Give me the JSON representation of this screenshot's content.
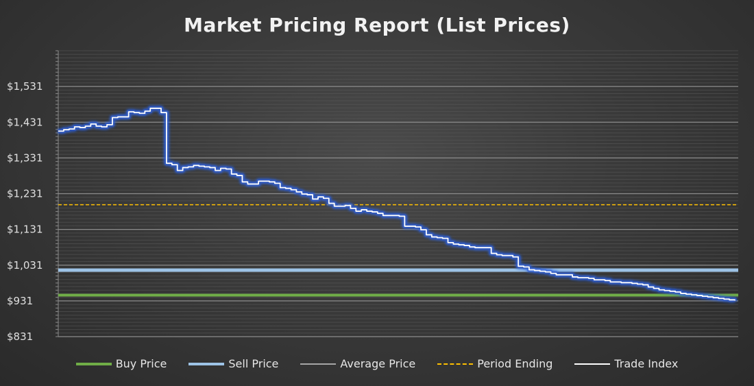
{
  "chart_data": {
    "type": "line",
    "title": "Market Pricing Report (List Prices)",
    "xlabel": "",
    "ylabel": "",
    "ylim": [
      831,
      1631
    ],
    "y_ticks": [
      "$831",
      "$931",
      "$1,031",
      "$1,131",
      "$1,231",
      "$1,331",
      "$1,431",
      "$1,531"
    ],
    "y_tick_values": [
      831,
      931,
      1031,
      1131,
      1231,
      1331,
      1431,
      1531
    ],
    "grid": true,
    "legend_position": "bottom",
    "colors": {
      "buy": "#70ad47",
      "sell": "#9dc3e6",
      "average": "#a6a6a6",
      "period": "#ffc000",
      "trade": "#ffffff",
      "trade_glow": "#2f5fd8"
    },
    "series": [
      {
        "name": "Buy Price",
        "style": "solid-thick",
        "constant": 947
      },
      {
        "name": "Sell Price",
        "style": "solid-thick",
        "constant": 1017
      },
      {
        "name": "Average Price",
        "style": "solid-thin",
        "constant": null
      },
      {
        "name": "Period Ending",
        "style": "dashed",
        "constant": 1200
      },
      {
        "name": "Trade Index",
        "style": "glow",
        "x": [
          0,
          2,
          4,
          6,
          8,
          10,
          12,
          14,
          16,
          18,
          20,
          22,
          24,
          26,
          28,
          30,
          32,
          34,
          36,
          38,
          40,
          42,
          44,
          46,
          48,
          50,
          52,
          54,
          56,
          58,
          60,
          62,
          64,
          66,
          68,
          70,
          72,
          74,
          76,
          78,
          80,
          82,
          84,
          86,
          88,
          90,
          92,
          94,
          96,
          98,
          100,
          102,
          104,
          106,
          108,
          110,
          112,
          114,
          116,
          118,
          120,
          122,
          124,
          126,
          128,
          130,
          132,
          134,
          136,
          138,
          140,
          142,
          144,
          146,
          148,
          150,
          152,
          154,
          156,
          158,
          160,
          162,
          164,
          166,
          168,
          170,
          172,
          174,
          176,
          178,
          180,
          182,
          184,
          186,
          188,
          190,
          192,
          194,
          196,
          198,
          200,
          202,
          204,
          206,
          208,
          210,
          212,
          214,
          216,
          218,
          220,
          222,
          224,
          226,
          228,
          230,
          232,
          234,
          236,
          238,
          240,
          242,
          244,
          246,
          248,
          250
        ],
        "values": [
          1406,
          1410,
          1412,
          1418,
          1416,
          1420,
          1426,
          1420,
          1418,
          1424,
          1444,
          1446,
          1446,
          1460,
          1458,
          1456,
          1462,
          1470,
          1470,
          1458,
          1316,
          1312,
          1296,
          1304,
          1306,
          1310,
          1308,
          1306,
          1304,
          1296,
          1302,
          1300,
          1286,
          1282,
          1264,
          1258,
          1258,
          1266,
          1266,
          1264,
          1260,
          1248,
          1246,
          1242,
          1236,
          1230,
          1228,
          1216,
          1222,
          1218,
          1204,
          1196,
          1196,
          1198,
          1190,
          1182,
          1186,
          1182,
          1180,
          1176,
          1170,
          1170,
          1170,
          1168,
          1140,
          1140,
          1138,
          1130,
          1116,
          1110,
          1108,
          1106,
          1094,
          1090,
          1088,
          1086,
          1082,
          1080,
          1080,
          1080,
          1064,
          1060,
          1058,
          1058,
          1054,
          1028,
          1026,
          1018,
          1016,
          1014,
          1012,
          1008,
          1004,
          1004,
          1004,
          998,
          996,
          996,
          994,
          990,
          990,
          988,
          984,
          984,
          982,
          982,
          980,
          978,
          976,
          970,
          966,
          962,
          960,
          958,
          956,
          952,
          950,
          948,
          946,
          944,
          942,
          940,
          938,
          936,
          934,
          932
        ],
        "line_values_note": ""
      }
    ]
  },
  "legend": {
    "items": [
      "Buy Price",
      "Sell Price",
      "Average Price",
      "Period Ending",
      "Trade Index"
    ]
  }
}
